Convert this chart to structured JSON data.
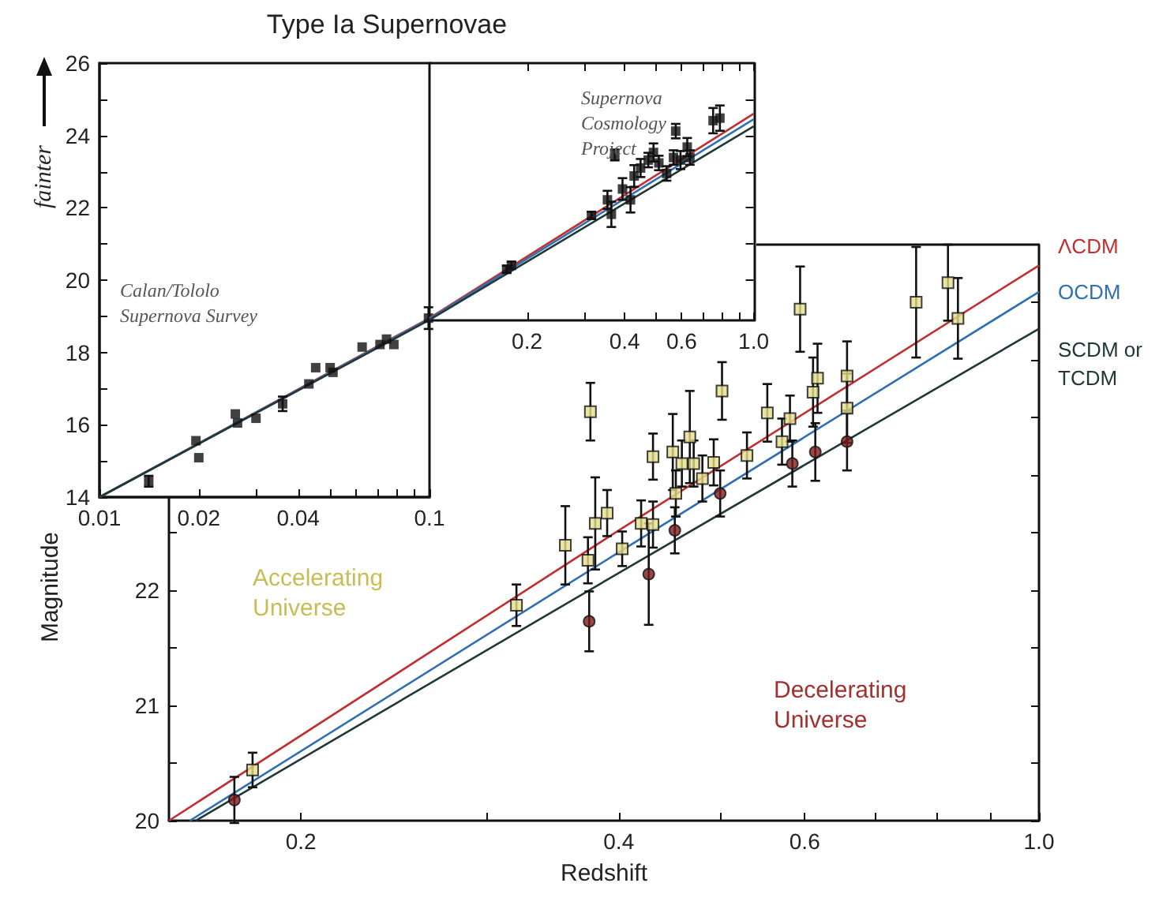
{
  "chart_data": [
    {
      "type": "scatter",
      "title": "Type Ia Supernovae",
      "ylabel": "fainter",
      "log": "x",
      "xlim": [
        0.01,
        0.1
      ],
      "ylim": [
        14,
        26
      ],
      "xticks": [
        0.01,
        0.02,
        {
          "value": 0.03,
          "label": null
        },
        0.04,
        {
          "value": 0.05,
          "label": null
        },
        {
          "value": 0.06,
          "label": null
        },
        {
          "value": 0.07,
          "label": null
        },
        {
          "value": 0.08,
          "label": null
        },
        {
          "value": 0.09,
          "label": null
        },
        0.1
      ],
      "yticks": [
        14,
        {
          "value": 15,
          "label": null
        },
        16,
        {
          "value": 17,
          "label": null
        },
        18,
        {
          "value": 19,
          "label": null
        },
        20,
        {
          "value": 21,
          "label": null
        },
        22,
        {
          "value": 23,
          "label": null
        },
        24,
        {
          "value": 25,
          "label": null
        },
        26
      ],
      "annotations": [
        "Calan/Tololo Supernova Survey"
      ],
      "series": [
        {
          "color": "#111111",
          "marker": "square",
          "x": [
            0.0141,
            0.0196,
            0.02,
            0.0258,
            0.0262,
            0.0298,
            0.0359,
            0.0431,
            0.0452,
            0.05,
            0.051,
            0.0625,
            0.0708,
            0.0741,
            0.078,
            0.0993
          ],
          "values": [
            14.44,
            15.56,
            15.09,
            16.3,
            16.05,
            16.18,
            16.58,
            17.13,
            17.58,
            17.58,
            17.45,
            18.15,
            18.22,
            18.37,
            18.22,
            18.95
          ],
          "errors": [
            0.15,
            null,
            null,
            null,
            null,
            null,
            0.2,
            null,
            null,
            null,
            null,
            null,
            null,
            null,
            null,
            0.3
          ]
        },
        {
          "type": "line",
          "color": "#c03030",
          "marker": "none",
          "x": [
            0.01,
            0.1
          ],
          "values": [
            14.0,
            18.95
          ]
        },
        {
          "type": "line",
          "color": "#3070b0",
          "marker": "none",
          "x": [
            0.01,
            0.1
          ],
          "values": [
            14.0,
            18.93
          ]
        },
        {
          "type": "line",
          "color": "#203838",
          "marker": "none",
          "x": [
            0.01,
            0.1
          ],
          "values": [
            14.0,
            18.9
          ]
        }
      ]
    },
    {
      "type": "scatter",
      "log": "x",
      "xlim": [
        0.1,
        1.0
      ],
      "ylim": [
        14,
        26
      ],
      "tick_labels": "x",
      "yticks": [
        {
          "value": 20,
          "label": null
        },
        {
          "value": 21,
          "label": null
        },
        {
          "value": 22,
          "label": null
        },
        {
          "value": 23,
          "label": null
        },
        {
          "value": 24,
          "label": null
        },
        {
          "value": 25,
          "label": null
        }
      ],
      "xticks": [
        0.2,
        {
          "value": 0.3,
          "label": null
        },
        0.4,
        {
          "value": 0.5,
          "label": null
        },
        0.6,
        {
          "value": 0.7,
          "label": null
        },
        {
          "value": 0.8,
          "label": null
        },
        {
          "value": 0.9,
          "label": null
        },
        {
          "value": 1,
          "label": "1.0"
        }
      ],
      "annotations": [
        "Supernova Cosmology Project"
      ],
      "series": [
        {
          "color": "#111111",
          "marker": "square",
          "x": [
            0.173,
            0.179,
            0.316,
            0.354,
            0.364,
            0.373,
            0.394,
            0.417,
            0.428,
            0.448,
            0.473,
            0.491,
            0.51,
            0.539,
            0.566,
            0.575,
            0.595,
            0.624,
            0.636,
            0.75,
            0.787
          ],
          "values": [
            20.3,
            20.41,
            21.79,
            22.22,
            21.82,
            23.46,
            22.52,
            22.22,
            22.88,
            23.1,
            23.32,
            23.53,
            23.24,
            22.95,
            23.39,
            24.12,
            23.32,
            23.68,
            23.39,
            24.41,
            24.48
          ],
          "errors": [
            0.1,
            0.1,
            0.1,
            0.25,
            0.35,
            0.15,
            0.3,
            0.35,
            0.3,
            0.25,
            0.2,
            0.25,
            0.2,
            0.2,
            0.2,
            0.2,
            0.25,
            0.25,
            0.2,
            0.35,
            0.35
          ]
        },
        {
          "type": "line",
          "color": "#c03030",
          "marker": "none",
          "x": [
            0.1,
            1.0
          ],
          "values": [
            18.95,
            24.6
          ]
        },
        {
          "type": "line",
          "color": "#3070b0",
          "marker": "none",
          "x": [
            0.1,
            1.0
          ],
          "values": [
            18.93,
            24.45
          ]
        },
        {
          "type": "line",
          "color": "#203838",
          "marker": "none",
          "x": [
            0.1,
            1.0
          ],
          "values": [
            18.9,
            24.25
          ]
        }
      ]
    },
    {
      "type": "scatter",
      "xlabel": "Redshift",
      "ylabel": "Magnitude",
      "log": "x",
      "xlim": [
        0.15,
        1.0
      ],
      "ylim": [
        20,
        25
      ],
      "xticks": [
        0.2,
        {
          "value": 0.3,
          "label": null
        },
        0.4,
        {
          "value": 0.5,
          "label": null
        },
        0.6,
        {
          "value": 0.7,
          "label": null
        },
        {
          "value": 0.8,
          "label": null
        },
        {
          "value": 0.9,
          "label": null
        },
        {
          "value": 1,
          "label": "1.0"
        }
      ],
      "yticks": [
        20,
        {
          "value": 20.5,
          "label": null
        },
        21,
        {
          "value": 21.5,
          "label": null
        },
        22,
        {
          "value": 22.5,
          "label": null
        },
        {
          "value": 23,
          "label": null
        },
        {
          "value": 23.5,
          "label": null
        },
        {
          "value": 24,
          "label": null
        },
        {
          "value": 24.5,
          "label": null
        }
      ],
      "annotations": [
        "Accelerating Universe",
        "Decelerating Universe"
      ],
      "series": [
        {
          "color": "#e6df8c",
          "marker": "square",
          "x": [
            0.18,
            0.32,
            0.356,
            0.374,
            0.376,
            0.38,
            0.39,
            0.403,
            0.42,
            0.431,
            0.431,
            0.45,
            0.453,
            0.459,
            0.467,
            0.471,
            0.48,
            0.492,
            0.501,
            0.529,
            0.553,
            0.571,
            0.581,
            0.594,
            0.611,
            0.617,
            0.658,
            0.658,
            0.765,
            0.82,
            0.838
          ],
          "values": [
            20.44,
            21.87,
            22.39,
            22.26,
            23.55,
            22.58,
            22.67,
            22.36,
            22.58,
            22.57,
            23.16,
            23.2,
            22.84,
            23.1,
            23.33,
            23.1,
            22.97,
            23.11,
            23.73,
            23.17,
            23.54,
            23.29,
            23.49,
            24.44,
            23.72,
            23.84,
            23.86,
            23.58,
            24.5,
            24.67,
            24.36
          ],
          "errors": [
            0.15,
            0.18,
            0.34,
            0.2,
            0.25,
            0.4,
            0.2,
            0.15,
            0.2,
            0.2,
            0.2,
            0.33,
            0.2,
            0.2,
            0.4,
            0.2,
            0.2,
            0.2,
            0.25,
            0.2,
            0.25,
            0.2,
            0.2,
            0.37,
            0.3,
            0.3,
            0.3,
            0.3,
            0.48,
            0.33,
            0.35
          ]
        },
        {
          "color": "#7a1c1c",
          "marker": "circle",
          "x": [
            0.173,
            0.375,
            0.427,
            0.452,
            0.499,
            0.584,
            0.614,
            0.658
          ],
          "values": [
            20.18,
            21.73,
            22.14,
            22.52,
            22.84,
            23.1,
            23.2,
            23.29
          ],
          "errors": [
            0.2,
            0.26,
            0.44,
            0.2,
            0.2,
            0.2,
            0.25,
            0.25
          ]
        },
        {
          "type": "line",
          "name": "ΛCDM",
          "color": "#c03030",
          "marker": "none",
          "x": [
            0.15,
            0.4,
            1.0
          ],
          "values": [
            20.0,
            22.52,
            24.82
          ]
        },
        {
          "type": "line",
          "name": "OCDM",
          "color": "#3070b0",
          "marker": "none",
          "x": [
            0.157,
            0.4,
            1.0
          ],
          "values": [
            20.0,
            22.33,
            24.59
          ]
        },
        {
          "type": "line",
          "name": "SCDM or TCDM",
          "color": "#203838",
          "marker": "none",
          "x": [
            0.159,
            0.4,
            1.0
          ],
          "values": [
            20.0,
            22.15,
            24.27
          ]
        }
      ]
    }
  ]
}
